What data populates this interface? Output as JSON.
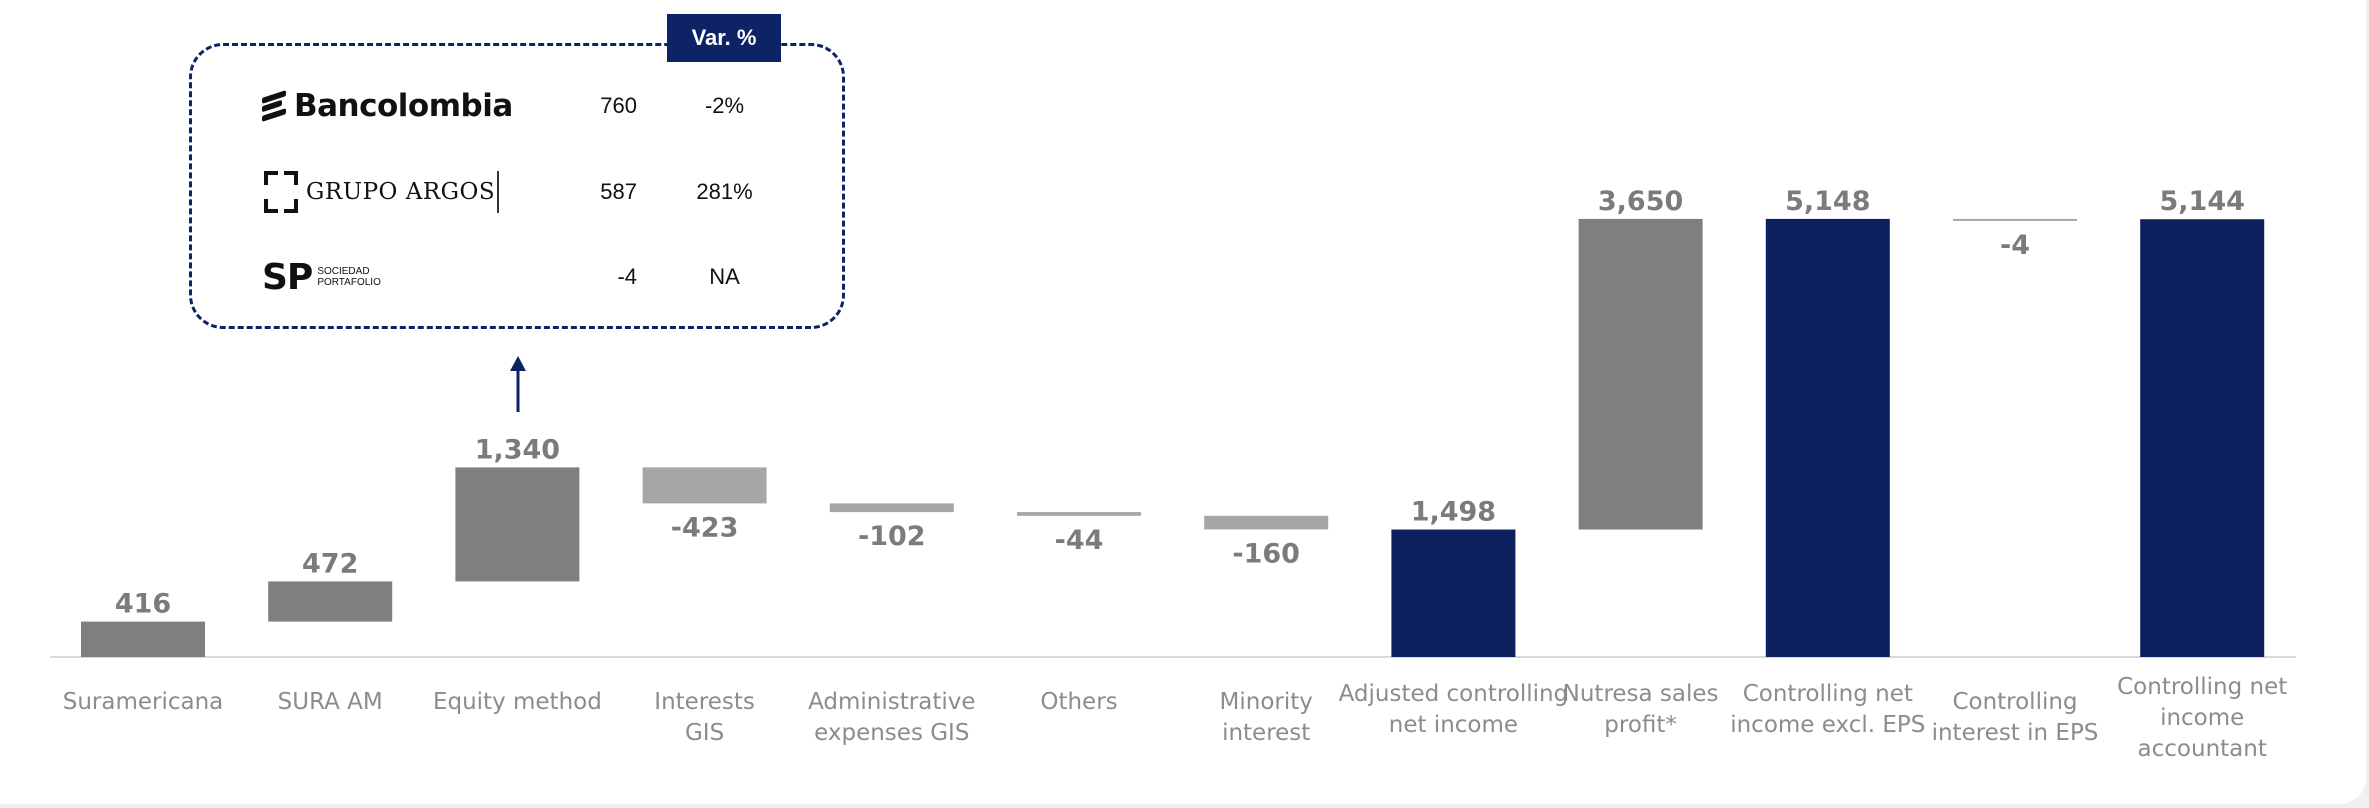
{
  "callout": {
    "header": "Var. %",
    "rows": [
      {
        "company": "Bancolombia",
        "value": "760",
        "var": "-2%"
      },
      {
        "company": "GRUPO ARGOS",
        "value": "587",
        "var": "281%"
      },
      {
        "company": "SP",
        "company_sub_1": "SOCIEDAD",
        "company_sub_2": "PORTAFOLIO",
        "value": "-4",
        "var": "NA"
      }
    ]
  },
  "chart_data": {
    "type": "waterfall",
    "colors": {
      "increase": "#7f7f7f",
      "decrease": "#a6a6a6",
      "total": "#0d1f5c",
      "axis": "#d9d9d9"
    },
    "bars": [
      {
        "category": "Suramericana",
        "value": 416,
        "label": "416",
        "kind": "increase"
      },
      {
        "category": "SURA AM",
        "value": 472,
        "label": "472",
        "kind": "increase"
      },
      {
        "category": "Equity method",
        "value": 1340,
        "label": "1,340",
        "kind": "increase"
      },
      {
        "category": "Interests GIS",
        "value": -423,
        "label": "-423",
        "kind": "decrease"
      },
      {
        "category": "Administrative expenses GIS",
        "value": -102,
        "label": "-102",
        "kind": "decrease"
      },
      {
        "category": "Others",
        "value": -44,
        "label": "-44",
        "kind": "decrease"
      },
      {
        "category": "Minority interest",
        "value": -160,
        "label": "-160",
        "kind": "decrease"
      },
      {
        "category": "Adjusted controlling net income",
        "value": 1498,
        "label": "1,498",
        "kind": "total"
      },
      {
        "category": "Nutresa sales profit*",
        "value": 3650,
        "label": "3,650",
        "kind": "increase"
      },
      {
        "category": "Controlling net income excl. EPS",
        "value": 5148,
        "label": "5,148",
        "kind": "total"
      },
      {
        "category": "Controlling interest in EPS",
        "value": -4,
        "label": "-4",
        "kind": "decrease"
      },
      {
        "category": "Controlling net income accountant",
        "value": 5144,
        "label": "5,144",
        "kind": "total"
      }
    ],
    "category_lines": [
      [
        "Suramericana"
      ],
      [
        "SURA AM"
      ],
      [
        "Equity method"
      ],
      [
        "Interests",
        "GIS"
      ],
      [
        "Administrative",
        "expenses GIS"
      ],
      [
        "Others"
      ],
      [
        "Minority",
        "interest"
      ],
      [
        "Adjusted controlling",
        "net income"
      ],
      [
        "Nutresa sales",
        "profit*"
      ],
      [
        "Controlling net",
        "income excl. EPS"
      ],
      [
        "Controlling",
        "interest in EPS"
      ],
      [
        "Controlling net",
        "income",
        "accountant"
      ]
    ]
  }
}
